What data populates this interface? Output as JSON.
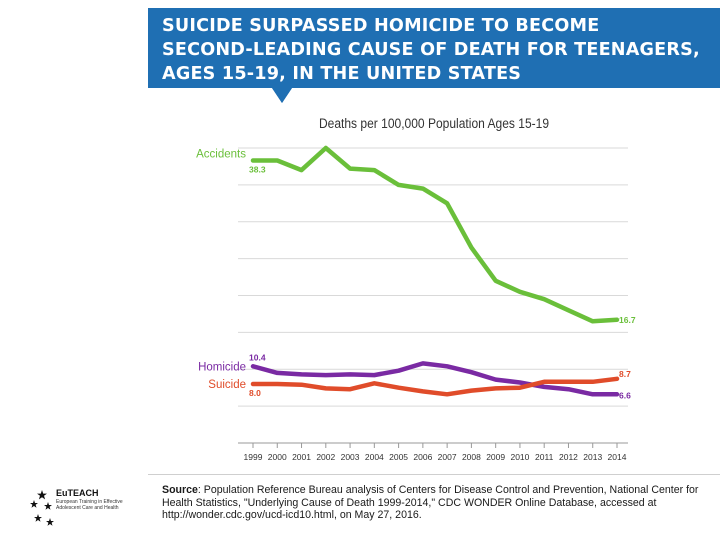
{
  "banner": {
    "title_lines": [
      "SUICIDE SURPASSED HOMICIDE TO BECOME",
      "SECOND-LEADING CAUSE OF DEATH FOR TEENAGERS,",
      "AGES 15-19, IN THE UNITED STATES"
    ],
    "color": "#1f6fb3"
  },
  "chart_data": {
    "type": "line",
    "title": "Deaths per 100,000 Population Ages 15-19",
    "xlabel": "",
    "ylabel": "",
    "categories": [
      "1999",
      "2000",
      "2001",
      "2002",
      "2003",
      "2004",
      "2005",
      "2006",
      "2007",
      "2008",
      "2009",
      "2010",
      "2011",
      "2012",
      "2013",
      "2014"
    ],
    "ylim": [
      0,
      40
    ],
    "grid": true,
    "series": [
      {
        "name": "Accidents",
        "color": "#6abf3a",
        "values": [
          38.3,
          38.3,
          37.0,
          40.0,
          37.2,
          37.0,
          35.0,
          34.5,
          32.5,
          26.5,
          22.0,
          20.5,
          19.5,
          18.0,
          16.5,
          16.7
        ],
        "start_label": "38.3",
        "end_label": "16.7"
      },
      {
        "name": "Homicide",
        "color": "#7a2aa3",
        "values": [
          10.4,
          9.5,
          9.3,
          9.2,
          9.3,
          9.2,
          9.8,
          10.8,
          10.4,
          9.6,
          8.6,
          8.2,
          7.6,
          7.3,
          6.6,
          6.6
        ],
        "start_label": "10.4",
        "end_label": "6.6"
      },
      {
        "name": "Suicide",
        "color": "#e04c2a",
        "values": [
          8.0,
          8.0,
          7.9,
          7.4,
          7.3,
          8.1,
          7.5,
          7.0,
          6.6,
          7.1,
          7.4,
          7.5,
          8.3,
          8.3,
          8.3,
          8.7
        ],
        "start_label": "8.0",
        "end_label": "8.7"
      }
    ]
  },
  "source": {
    "label": "Source",
    "text": ": Population Reference Bureau analysis of Centers for Disease Control and Prevention, National Center for Health Statistics, \"Underlying Cause of Death 1999-2014,\" CDC WONDER Online Database, accessed at http://wonder.cdc.gov/ucd-icd10.html, on May 27, 2016."
  },
  "logo": {
    "name": "EuTEACH",
    "subtitle": "European Training in Effective Adolescent Care and Health"
  }
}
